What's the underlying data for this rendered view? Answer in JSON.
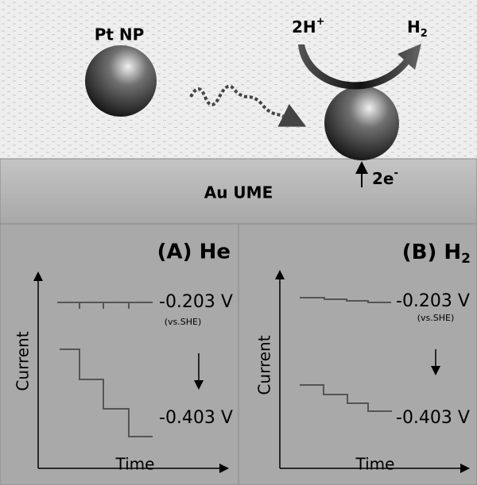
{
  "top": {
    "particle": "Pt NP",
    "reactant": {
      "text": "2H",
      "sup": "+"
    },
    "product": {
      "text": "H",
      "sub": "2"
    },
    "electrons": {
      "text": "2e",
      "sup": "-"
    },
    "electrode": "Au UME"
  },
  "panels": [
    {
      "title": "(A) He",
      "upper_potential": "-0.203 V",
      "reference": "(vs.SHE)",
      "lower_potential": "-0.403 V",
      "y_label": "Current",
      "x_label": "Time"
    },
    {
      "title": {
        "text": "(B) H",
        "sub": "2"
      },
      "upper_potential": "-0.203 V",
      "reference": "(vs.SHE)",
      "lower_potential": "-0.403 V",
      "y_label": "Current",
      "x_label": "Time"
    }
  ]
}
